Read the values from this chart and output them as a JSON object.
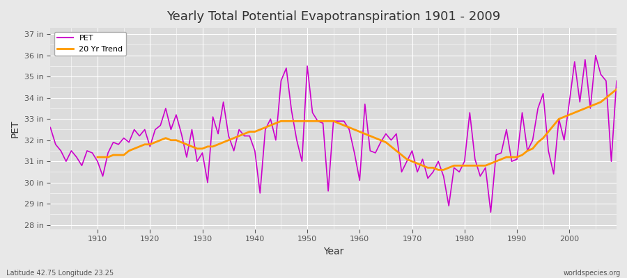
{
  "title": "Yearly Total Potential Evapotranspiration 1901 - 2009",
  "ylabel": "PET",
  "xlabel": "Year",
  "pet_color": "#cc00cc",
  "trend_color": "#ff9900",
  "background_color": "#e8e8e8",
  "plot_bg_color": "#dcdcdc",
  "grid_color": "#ffffff",
  "ylim": [
    27.8,
    37.3
  ],
  "yticks": [
    28,
    29,
    30,
    31,
    32,
    33,
    34,
    35,
    36,
    37
  ],
  "ytick_labels": [
    "28 in",
    "29 in",
    "30 in",
    "31 in",
    "32 in",
    "33 in",
    "34 in",
    "35 in",
    "36 in",
    "37 in"
  ],
  "xticks": [
    1910,
    1920,
    1930,
    1940,
    1950,
    1960,
    1970,
    1980,
    1990,
    2000
  ],
  "footer_left": "Latitude 42.75 Longitude 23.25",
  "footer_right": "worldspecies.org",
  "years": [
    1901,
    1902,
    1903,
    1904,
    1905,
    1906,
    1907,
    1908,
    1909,
    1910,
    1911,
    1912,
    1913,
    1914,
    1915,
    1916,
    1917,
    1918,
    1919,
    1920,
    1921,
    1922,
    1923,
    1924,
    1925,
    1926,
    1927,
    1928,
    1929,
    1930,
    1931,
    1932,
    1933,
    1934,
    1935,
    1936,
    1937,
    1938,
    1939,
    1940,
    1941,
    1942,
    1943,
    1944,
    1945,
    1946,
    1947,
    1948,
    1949,
    1950,
    1951,
    1952,
    1953,
    1954,
    1955,
    1956,
    1957,
    1958,
    1959,
    1960,
    1961,
    1962,
    1963,
    1964,
    1965,
    1966,
    1967,
    1968,
    1969,
    1970,
    1971,
    1972,
    1973,
    1974,
    1975,
    1976,
    1977,
    1978,
    1979,
    1980,
    1981,
    1982,
    1983,
    1984,
    1985,
    1986,
    1987,
    1988,
    1989,
    1990,
    1991,
    1992,
    1993,
    1994,
    1995,
    1996,
    1997,
    1998,
    1999,
    2000,
    2001,
    2002,
    2003,
    2004,
    2005,
    2006,
    2007,
    2008,
    2009
  ],
  "pet_values": [
    32.6,
    31.8,
    31.5,
    31.0,
    31.5,
    31.2,
    30.8,
    31.5,
    31.4,
    31.0,
    30.3,
    31.4,
    31.9,
    31.8,
    32.1,
    31.9,
    32.5,
    32.2,
    32.5,
    31.7,
    32.5,
    32.7,
    33.5,
    32.5,
    33.2,
    32.3,
    31.2,
    32.5,
    31.0,
    31.4,
    30.0,
    33.1,
    32.3,
    33.8,
    32.2,
    31.5,
    32.5,
    32.2,
    32.2,
    31.5,
    29.5,
    32.5,
    33.0,
    32.0,
    34.8,
    35.4,
    33.4,
    32.0,
    31.0,
    35.5,
    33.3,
    32.9,
    32.8,
    29.6,
    32.9,
    32.9,
    32.9,
    32.5,
    31.4,
    30.1,
    33.7,
    31.5,
    31.4,
    31.9,
    32.3,
    32.0,
    32.3,
    30.5,
    31.0,
    31.5,
    30.5,
    31.1,
    30.2,
    30.5,
    31.0,
    30.3,
    28.9,
    30.7,
    30.5,
    31.0,
    33.3,
    31.1,
    30.3,
    30.7,
    28.6,
    31.3,
    31.4,
    32.5,
    31.0,
    31.1,
    33.3,
    31.5,
    32.0,
    33.5,
    34.2,
    31.5,
    30.4,
    33.0,
    32.0,
    33.8,
    35.7,
    33.8,
    35.8,
    33.5,
    36.0,
    35.1,
    34.8,
    31.0,
    34.8
  ],
  "trend_years": [
    1910,
    1911,
    1912,
    1913,
    1914,
    1915,
    1916,
    1917,
    1918,
    1919,
    1920,
    1921,
    1922,
    1923,
    1924,
    1925,
    1926,
    1927,
    1928,
    1929,
    1930,
    1931,
    1932,
    1933,
    1934,
    1935,
    1936,
    1937,
    1938,
    1939,
    1940,
    1941,
    1942,
    1943,
    1944,
    1945,
    1946,
    1947,
    1948,
    1949,
    1950,
    1951,
    1952,
    1953,
    1954,
    1955,
    1956,
    1957,
    1958,
    1959,
    1960,
    1961,
    1962,
    1963,
    1964,
    1965,
    1966,
    1967,
    1968,
    1969,
    1970,
    1971,
    1972,
    1973,
    1974,
    1975,
    1976,
    1977,
    1978,
    1979,
    1980,
    1981,
    1982,
    1983,
    1984,
    1985,
    1986,
    1987,
    1988,
    1989,
    1990,
    1991,
    1992,
    1993,
    1994,
    1995,
    1996,
    1997,
    1998,
    1999,
    2000,
    2001,
    2002,
    2003,
    2004,
    2005,
    2006,
    2007,
    2008,
    2009
  ],
  "trend_values": [
    31.2,
    31.2,
    31.2,
    31.3,
    31.3,
    31.3,
    31.5,
    31.6,
    31.7,
    31.8,
    31.8,
    31.9,
    32.0,
    32.1,
    32.0,
    32.0,
    31.9,
    31.8,
    31.7,
    31.6,
    31.6,
    31.7,
    31.7,
    31.8,
    31.9,
    32.0,
    32.1,
    32.2,
    32.3,
    32.4,
    32.4,
    32.5,
    32.6,
    32.7,
    32.8,
    32.9,
    32.9,
    32.9,
    32.9,
    32.9,
    32.9,
    32.9,
    32.9,
    32.9,
    32.9,
    32.9,
    32.8,
    32.7,
    32.6,
    32.5,
    32.4,
    32.3,
    32.2,
    32.1,
    32.0,
    31.9,
    31.7,
    31.5,
    31.3,
    31.1,
    31.0,
    30.9,
    30.8,
    30.7,
    30.7,
    30.6,
    30.6,
    30.7,
    30.8,
    30.8,
    30.8,
    30.8,
    30.8,
    30.8,
    30.8,
    30.9,
    31.0,
    31.1,
    31.2,
    31.2,
    31.2,
    31.3,
    31.5,
    31.6,
    31.9,
    32.1,
    32.4,
    32.7,
    33.0,
    33.1,
    33.2,
    33.3,
    33.4,
    33.5,
    33.6,
    33.7,
    33.8,
    34.0,
    34.2,
    34.4
  ]
}
